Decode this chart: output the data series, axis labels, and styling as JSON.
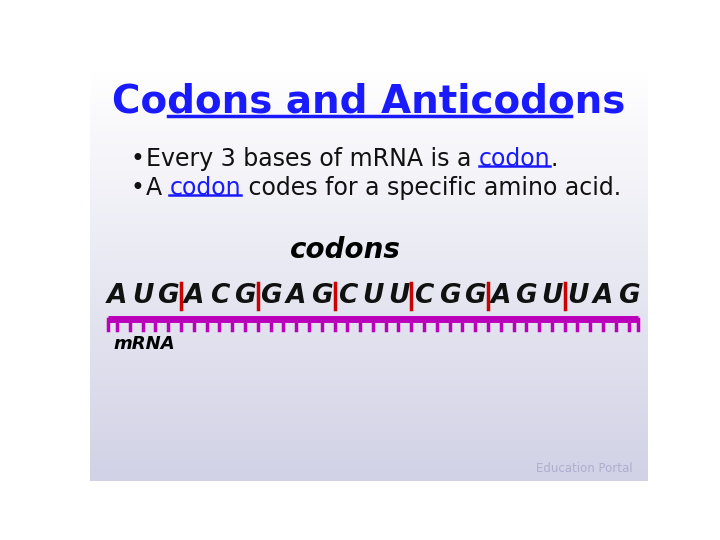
{
  "title": "Codons and Anticodons",
  "title_color": "#1a1aff",
  "title_fontsize": 28,
  "bullet_fontsize": 17,
  "bullet_color": "#111111",
  "codon_color": "#1a1aff",
  "bullet1_prefix": "Every 3 bases of mRNA is a ",
  "bullet1_codon": "codon",
  "bullet1_suffix": ".",
  "bullet2_prefix": "A ",
  "bullet2_codon": "codon",
  "bullet2_suffix": " codes for a specific amino acid.",
  "codons_label": "codons",
  "mrna_label": "mRNA",
  "sequence": [
    "A",
    "U",
    "G",
    "A",
    "C",
    "G",
    "G",
    "A",
    "G",
    "C",
    "U",
    "U",
    "C",
    "G",
    "G",
    "A",
    "G",
    "U",
    "U",
    "A",
    "G"
  ],
  "codon_dividers": [
    3,
    6,
    9,
    12,
    15,
    18
  ],
  "ruler_color": "#bb00bb",
  "divider_color": "#cc0000",
  "tick_color": "#bb00bb",
  "seq_color": "#111111",
  "watermark": "Education Portal",
  "watermark_color": "#aaaacc"
}
